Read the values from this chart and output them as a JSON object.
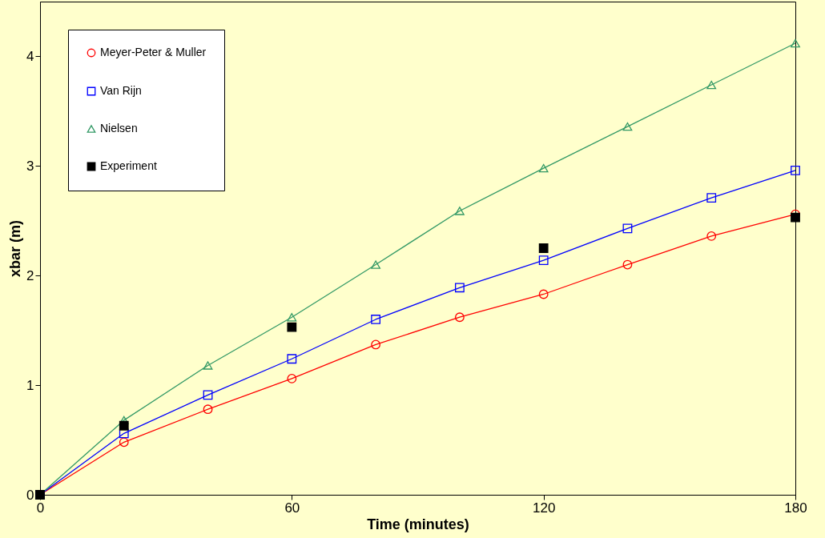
{
  "chart_data": {
    "type": "line",
    "xlabel": "Time (minutes)",
    "ylabel": "xbar (m)",
    "x": [
      0,
      20,
      40,
      60,
      80,
      100,
      120,
      140,
      160,
      180
    ],
    "series": [
      {
        "name": "Meyer-Peter & Muller",
        "color": "#ff0000",
        "marker": "circle",
        "values": [
          0,
          0.48,
          0.78,
          1.06,
          1.37,
          1.62,
          1.83,
          2.1,
          2.36,
          2.56
        ]
      },
      {
        "name": "Van Rijn",
        "color": "#0000ff",
        "marker": "square",
        "values": [
          0,
          0.56,
          0.91,
          1.24,
          1.6,
          1.89,
          2.14,
          2.43,
          2.71,
          2.96
        ]
      },
      {
        "name": "Nielsen",
        "color": "#339966",
        "marker": "triangle",
        "values": [
          0,
          0.68,
          1.18,
          1.62,
          2.1,
          2.59,
          2.98,
          3.36,
          3.74,
          4.12
        ]
      },
      {
        "name": "Experiment",
        "type": "scatter",
        "color": "#000000",
        "marker": "square",
        "x": [
          0,
          20,
          60,
          120,
          180
        ],
        "values": [
          0,
          0.63,
          1.53,
          2.25,
          2.53
        ]
      }
    ],
    "xlim": [
      0,
      180
    ],
    "xticks": [
      0,
      60,
      120,
      180
    ],
    "ylim": [
      0,
      4.5
    ],
    "yticks": [
      0,
      1,
      2,
      3,
      4
    ],
    "grid": false,
    "legend": "top left"
  }
}
